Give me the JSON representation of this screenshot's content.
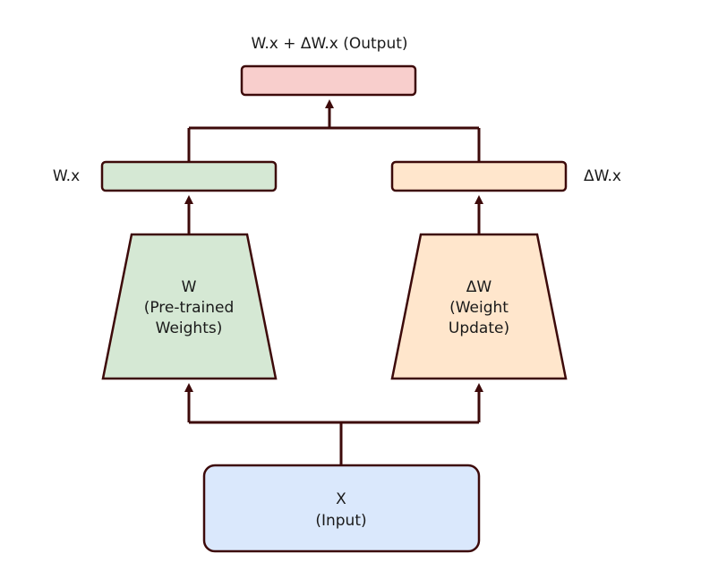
{
  "diagram": {
    "output": {
      "label": "W.x + ΔW.x (Output)",
      "color": "#f8cecc"
    },
    "left": {
      "result_label": "W.x",
      "result_color": "#d5e8d4",
      "block_lines": [
        "W",
        "(Pre-trained",
        "Weights)"
      ],
      "block_color": "#d5e8d4"
    },
    "right": {
      "result_label": "ΔW.x",
      "result_color": "#ffe6cc",
      "block_lines": [
        "ΔW",
        "(Weight",
        "Update)"
      ],
      "block_color": "#ffe6cc"
    },
    "input": {
      "lines": [
        "X",
        "(Input)"
      ],
      "color": "#dae8fc"
    },
    "colors": {
      "stroke": "#3d0a0a",
      "text": "#1a1a1a"
    }
  }
}
